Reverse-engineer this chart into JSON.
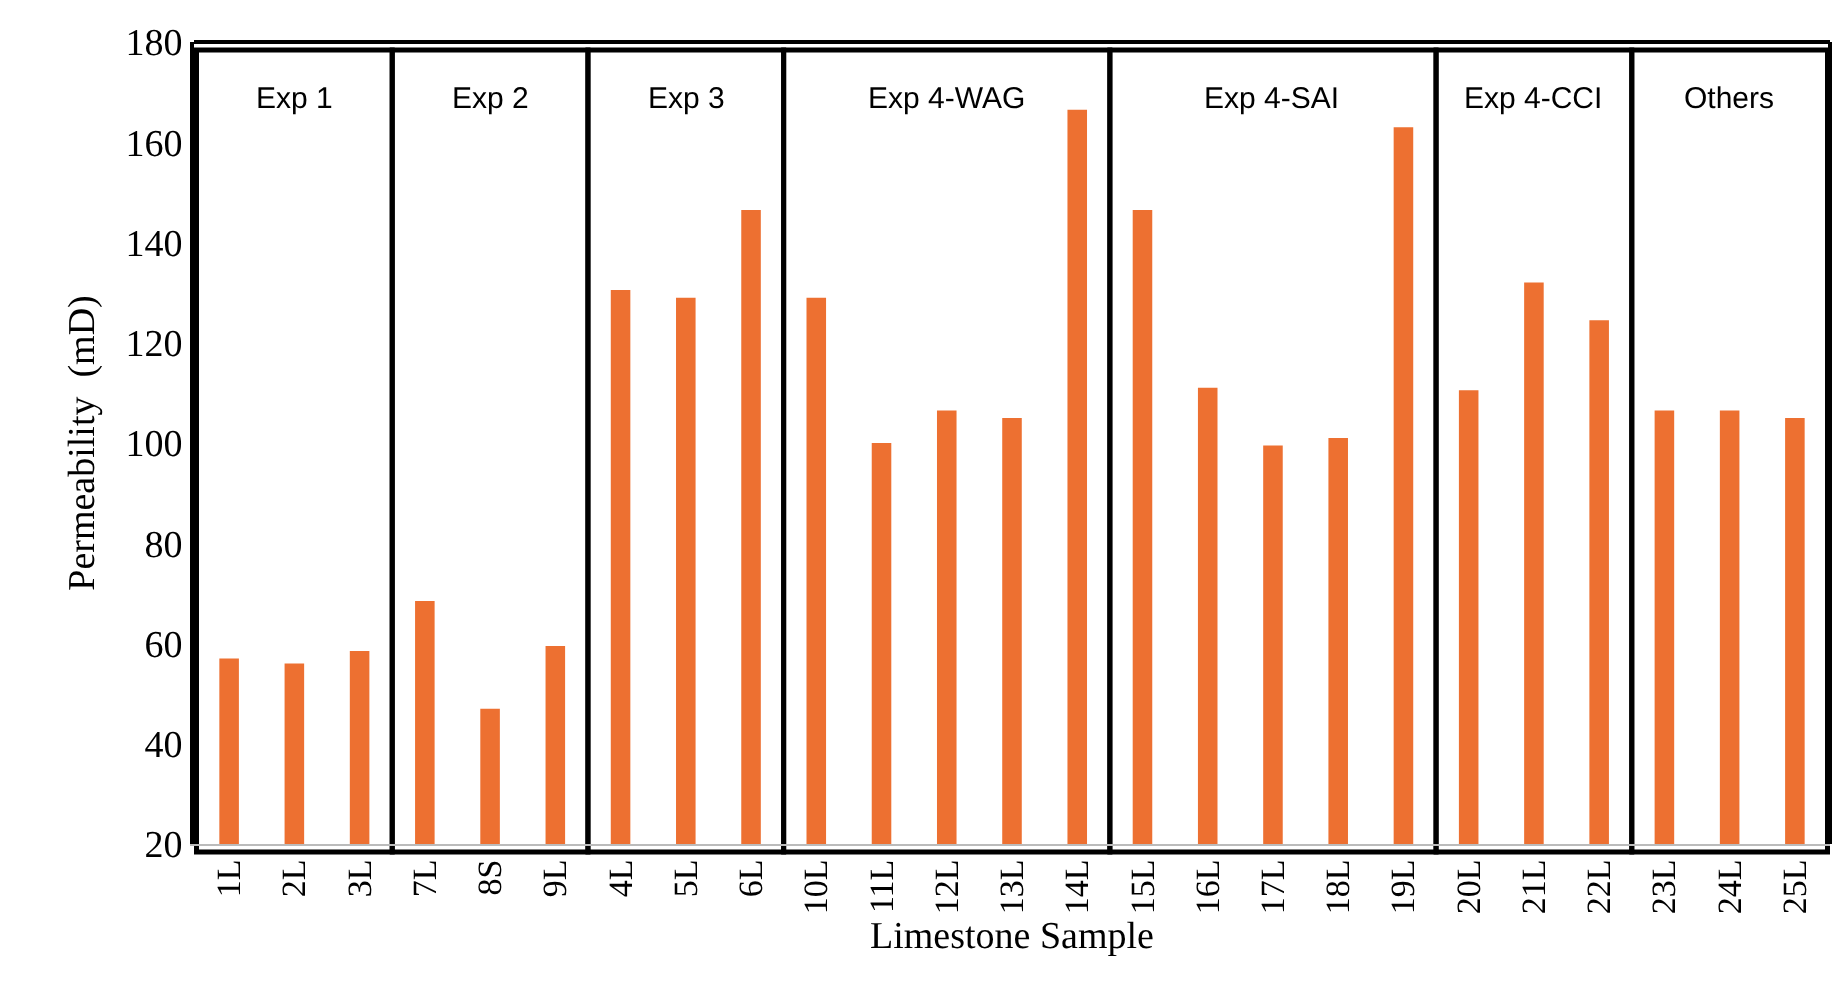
{
  "chart_data": {
    "type": "bar",
    "xlabel": "Limestone Sample",
    "ylabel": "Permeability  (mD)",
    "categories": [
      "1L",
      "2L",
      "3L",
      "7L",
      "8S",
      "9L",
      "4L",
      "5L",
      "6L",
      "10L",
      "11L",
      "12L",
      "13L",
      "14L",
      "15L",
      "16L",
      "17L",
      "18L",
      "19L",
      "20L",
      "21L",
      "22L",
      "23L",
      "24L",
      "25L"
    ],
    "values": [
      57,
      56,
      58.5,
      68.5,
      47,
      59.5,
      130.5,
      129,
      146.5,
      129,
      100,
      106.5,
      105,
      166.5,
      146.5,
      111,
      99.5,
      101,
      163,
      110.5,
      132,
      124.5,
      106.5,
      106.5,
      105
    ],
    "color": "#ed7031",
    "ylim": [
      20,
      180
    ],
    "yticks": [
      20,
      40,
      60,
      80,
      100,
      120,
      140,
      160,
      180
    ],
    "grid": false,
    "legend": false,
    "annotations": [
      "Exp 1",
      "Exp 2",
      "Exp 3",
      "Exp 4-WAG",
      "Exp 4-SAI",
      "Exp 4-CCI",
      "Others"
    ]
  }
}
